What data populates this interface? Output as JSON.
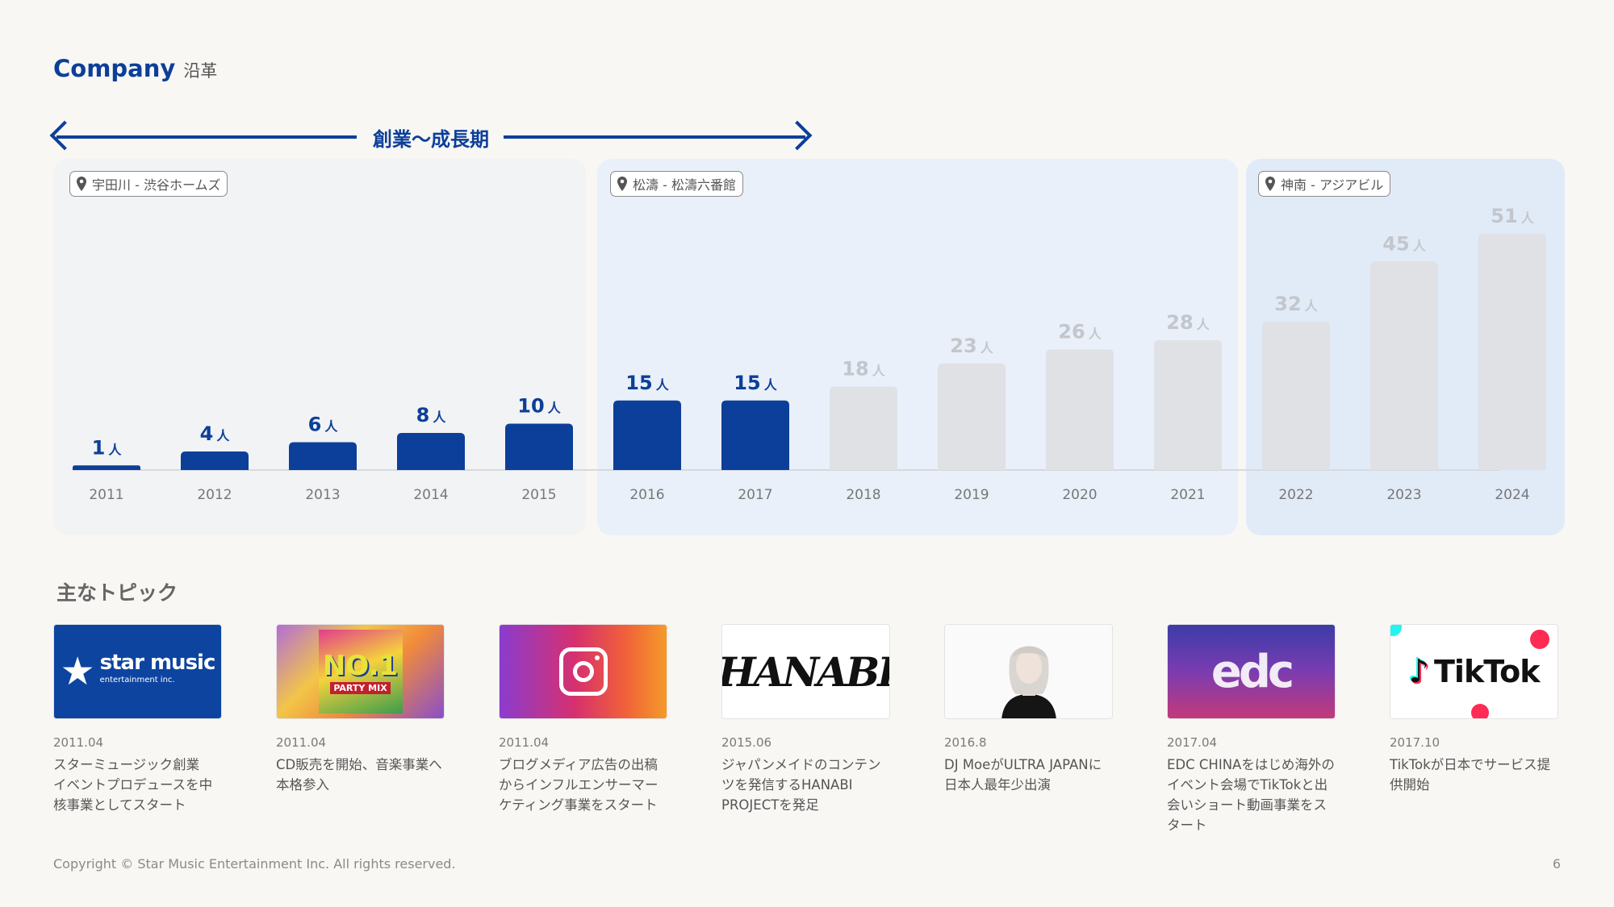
{
  "header": {
    "title_en": "Company",
    "title_jp": "沿革"
  },
  "period_label": "創業〜成長期",
  "locations": [
    {
      "label": "宇田川 - 渋谷ホームズ"
    },
    {
      "label": "松濤 - 松濤六番館"
    },
    {
      "label": "神南 - アジアビル"
    }
  ],
  "colors": {
    "primary": "#0c3f99",
    "projected": "#dfe1e5",
    "projected_label": "#c3c6cc"
  },
  "chart_data": {
    "type": "bar",
    "unit": "人",
    "categories": [
      "2011",
      "2012",
      "2013",
      "2014",
      "2015",
      "2016",
      "2017",
      "2018",
      "2019",
      "2020",
      "2021",
      "2022",
      "2023",
      "2024"
    ],
    "values": [
      1,
      4,
      6,
      8,
      10,
      15,
      15,
      18,
      23,
      26,
      28,
      32,
      45,
      51
    ],
    "highlighted": [
      true,
      true,
      true,
      true,
      true,
      true,
      true,
      false,
      false,
      false,
      false,
      false,
      false,
      false
    ],
    "ylim": [
      0,
      55
    ],
    "grid": false,
    "title": "",
    "xlabel": "",
    "ylabel": ""
  },
  "topics": {
    "title": "主なトピック",
    "items": [
      {
        "icon": "star-music-logo",
        "date": "2011.04",
        "text": "スターミュージック創業\nイベントプロデュースを中\n核事業としてスタート"
      },
      {
        "icon": "cd-cover-image",
        "date": "2011.04",
        "text": "CD販売を開始、音楽事業へ\n本格参入"
      },
      {
        "icon": "instagram-logo",
        "date": "2011.04",
        "text": "ブログメディア広告の出稿\nからインフルエンサーマー\nケティング事業をスタート"
      },
      {
        "icon": "hanabi-logo",
        "date": "2015.06",
        "text": "ジャパンメイドのコンテン\nツを発信するHANABI\nPROJECTを発足"
      },
      {
        "icon": "dj-portrait",
        "date": "2016.8",
        "text": "DJ MoeがULTRA JAPANに\n日本人最年少出演"
      },
      {
        "icon": "edc-event-photo",
        "date": "2017.04",
        "text": "EDC CHINAをはじめ海外の\nイベント会場でTikTokと出\n会いショート動画事業をス\nタート"
      },
      {
        "icon": "tiktok-logo",
        "date": "2017.10",
        "text": "TikTokが日本でサービス提\n供開始"
      }
    ]
  },
  "thumb_text": {
    "star_brand": "star music",
    "star_sub": "entertainment inc.",
    "cd_big": "NO.1",
    "cd_small": "PARTY MIX",
    "hanabi": "HANABI",
    "edc": "edc",
    "tiktok": "TikTok"
  },
  "footer": {
    "copyright": "Copyright © Star Music Entertainment Inc. All rights reserved.",
    "page": "6"
  }
}
